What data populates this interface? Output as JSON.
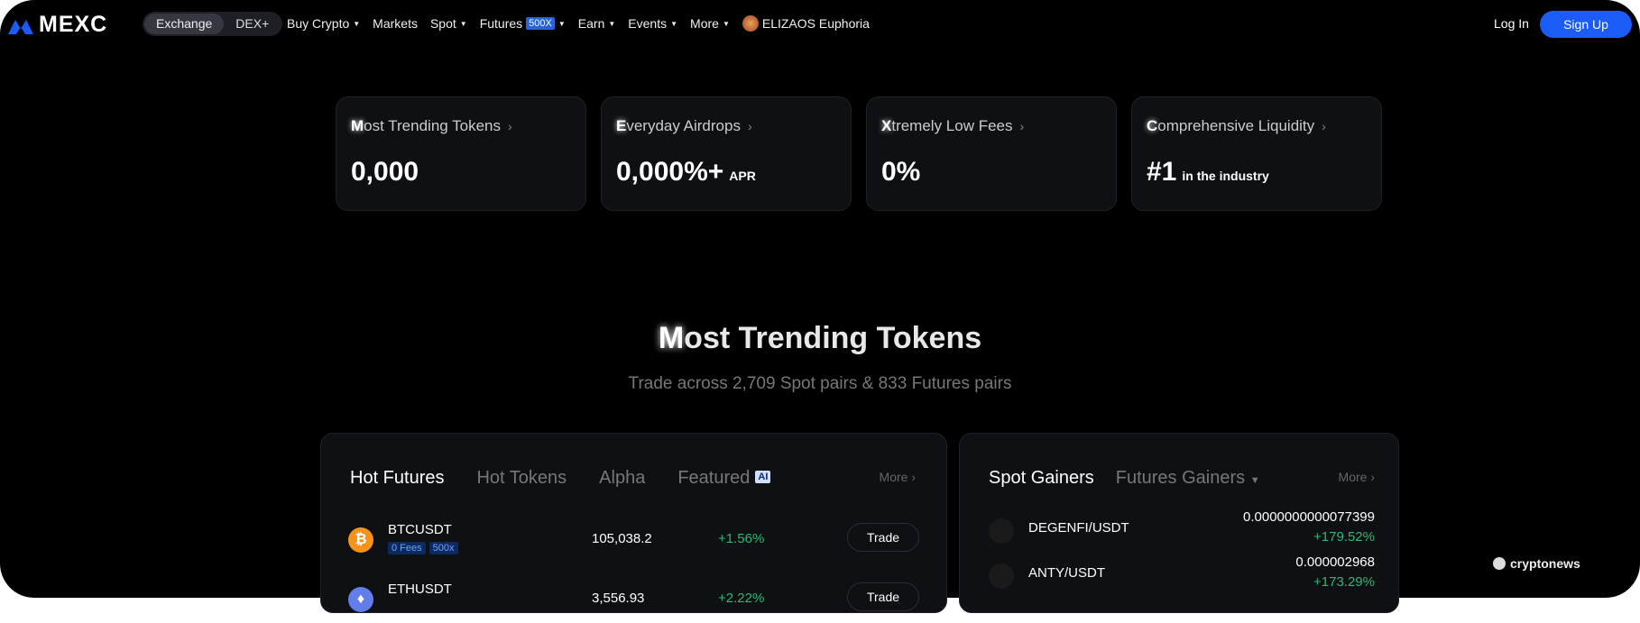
{
  "nav": {
    "logo": "MEXC",
    "exchange": "Exchange",
    "dex": "DEX+",
    "items": [
      {
        "label": "Buy Crypto",
        "caret": true
      },
      {
        "label": "Markets"
      },
      {
        "label": "Spot",
        "caret": true
      },
      {
        "label": "Futures",
        "badge": "500X",
        "caret": true
      },
      {
        "label": "Earn",
        "caret": true
      },
      {
        "label": "Events",
        "caret": true
      },
      {
        "label": "More",
        "caret": true
      }
    ],
    "promo": "ELIZAOS Euphoria",
    "login": "Log In",
    "signup": "Sign Up"
  },
  "cards": [
    {
      "first": "M",
      "rest": "ost Trending Tokens",
      "value": "0,000",
      "suffix": ""
    },
    {
      "first": "E",
      "rest": "veryday Airdrops",
      "value": "0,000%+",
      "suffix": "APR"
    },
    {
      "first": "X",
      "rest": "tremely Low Fees",
      "value": "0%",
      "suffix": ""
    },
    {
      "first": "C",
      "rest": "omprehensive Liquidity",
      "value": "#1",
      "suffix": "in the industry"
    }
  ],
  "section": {
    "first": "M",
    "rest": "ost Trending Tokens",
    "subtitle": "Trade across 2,709 Spot pairs & 833 Futures pairs"
  },
  "left": {
    "tabs": [
      "Hot Futures",
      "Hot Tokens",
      "Alpha",
      "Featured"
    ],
    "ai_badge": "AI",
    "more": "More",
    "rows": [
      {
        "symbol": "BTCUSDT",
        "tags": [
          "0 Fees",
          "500x"
        ],
        "price": "105,038.2",
        "change": "+1.56%",
        "action": "Trade",
        "color": "#f7931a"
      },
      {
        "symbol": "ETHUSDT",
        "tags": [],
        "price": "3,556.93",
        "change": "+2.22%",
        "action": "Trade",
        "color": "#627eea"
      }
    ]
  },
  "right": {
    "tabs": [
      "Spot Gainers",
      "Futures Gainers"
    ],
    "more": "More",
    "rows": [
      {
        "pair": "DEGENFI/USDT",
        "price": "0.0000000000077399",
        "change": "+179.52%"
      },
      {
        "pair": "ANTY/USDT",
        "price": "0.000002968",
        "change": "+173.29%"
      }
    ]
  },
  "watermark": "cryptonews",
  "colors": {
    "accent": "#1a5cf5",
    "positive": "#2cb775"
  }
}
